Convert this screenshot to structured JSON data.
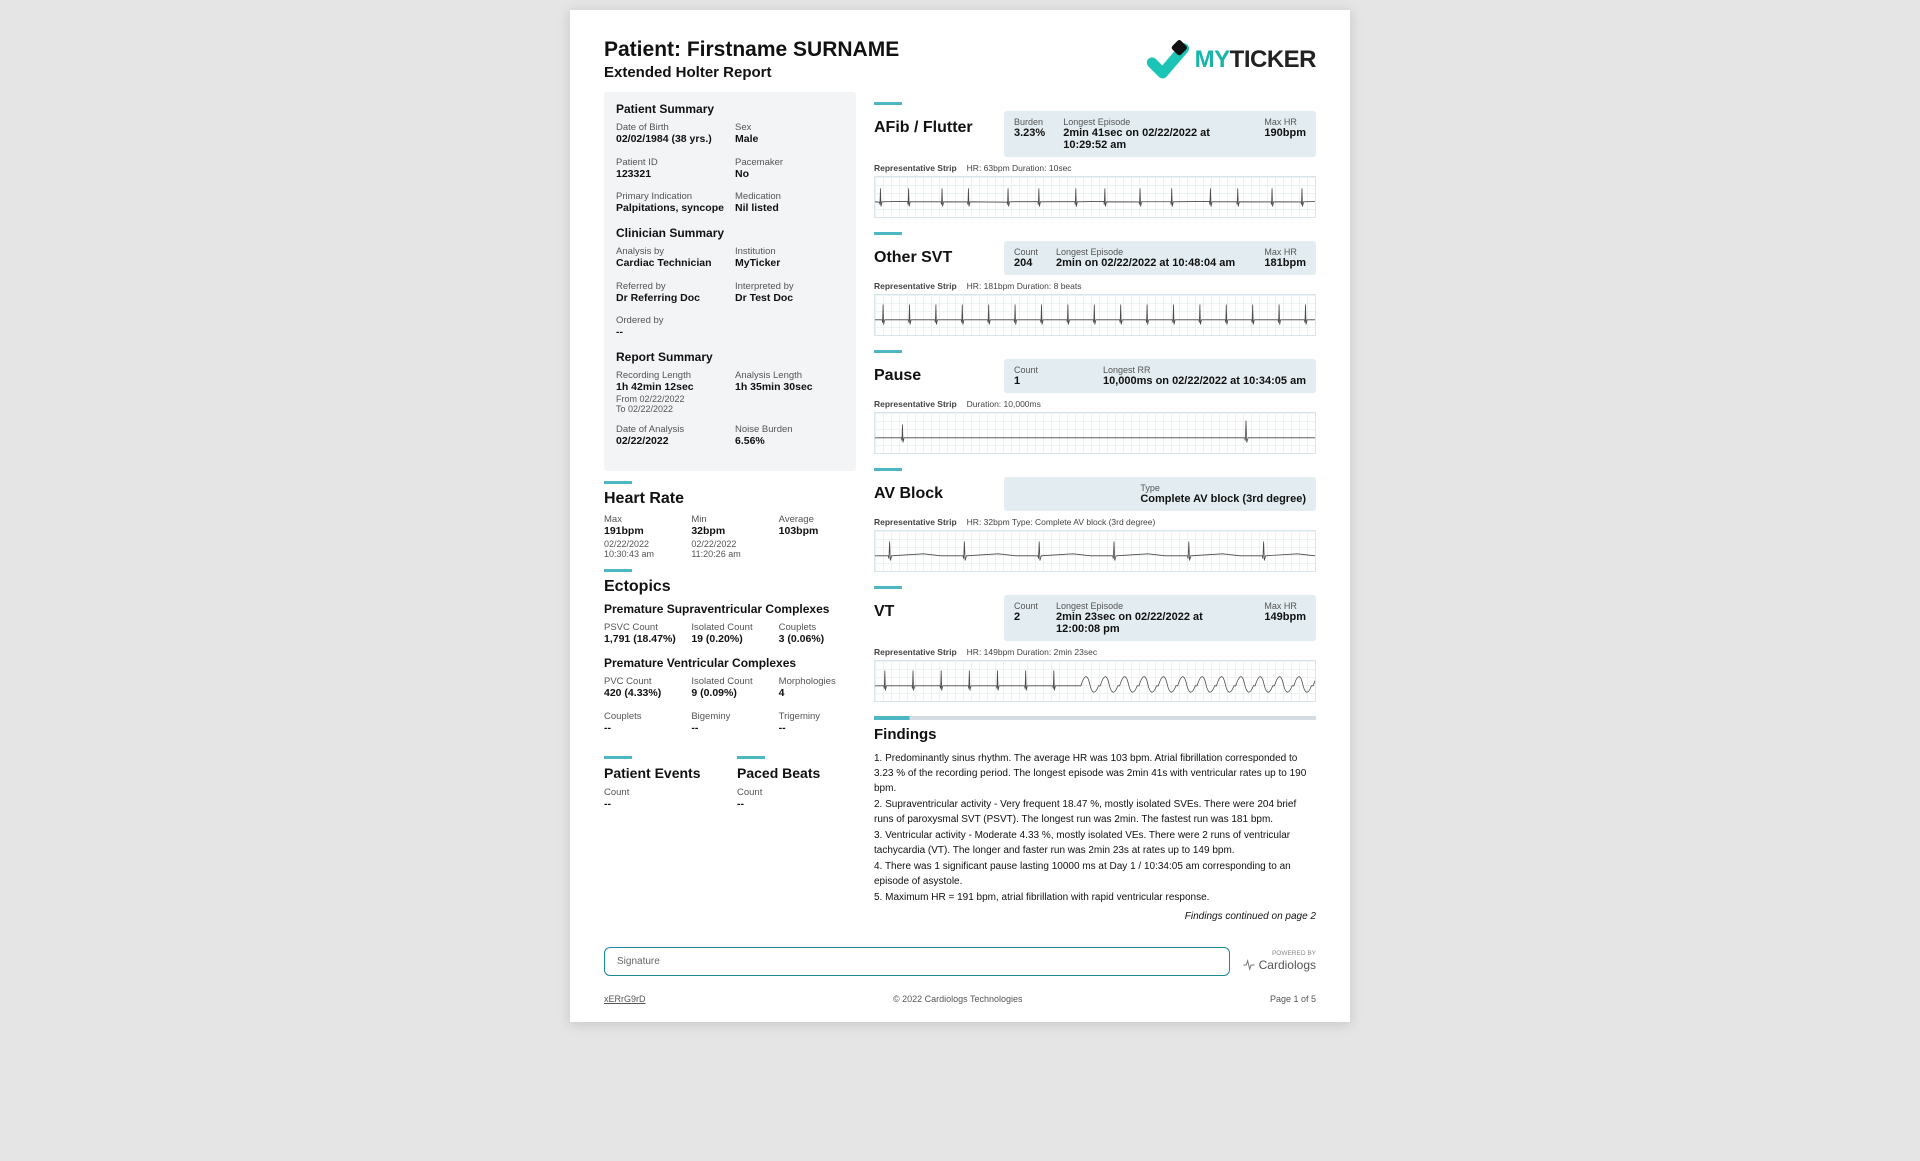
{
  "header": {
    "patient_name": "Patient: Firstname SURNAME",
    "report_type": "Extended Holter Report",
    "logo_my": "MY",
    "logo_ticker": "TICKER"
  },
  "patient_summary": {
    "title": "Patient Summary",
    "dob_label": "Date of Birth",
    "dob": "02/02/1984 (38 yrs.)",
    "sex_label": "Sex",
    "sex": "Male",
    "pid_label": "Patient ID",
    "pid": "123321",
    "pacemaker_label": "Pacemaker",
    "pacemaker": "No",
    "indication_label": "Primary Indication",
    "indication": "Palpitations, syncope",
    "medication_label": "Medication",
    "medication": "Nil listed"
  },
  "clinician_summary": {
    "title": "Clinician Summary",
    "analysis_by_label": "Analysis by",
    "analysis_by": "Cardiac Technician",
    "institution_label": "Institution",
    "institution": "MyTicker",
    "referred_label": "Referred by",
    "referred": "Dr Referring Doc",
    "interpreted_label": "Interpreted by",
    "interpreted": "Dr Test Doc",
    "ordered_label": "Ordered by",
    "ordered": "--"
  },
  "report_summary": {
    "title": "Report Summary",
    "rec_len_label": "Recording Length",
    "rec_len": "1h 42min 12sec",
    "analysis_len_label": "Analysis Length",
    "analysis_len": "1h 35min 30sec",
    "from": "From 02/22/2022",
    "to": "To 02/22/2022",
    "doa_label": "Date of Analysis",
    "doa": "02/22/2022",
    "noise_label": "Noise Burden",
    "noise": "6.56%"
  },
  "heart_rate": {
    "title": "Heart Rate",
    "max_label": "Max",
    "max": "191bpm",
    "max_date": "02/22/2022",
    "max_time": "10:30:43 am",
    "min_label": "Min",
    "min": "32bpm",
    "min_date": "02/22/2022",
    "min_time": "11:20:26 am",
    "avg_label": "Average",
    "avg": "103bpm"
  },
  "ectopics": {
    "title": "Ectopics",
    "psvc_title": "Premature Supraventricular Complexes",
    "psvc_count_label": "PSVC Count",
    "psvc_count": "1,791 (18.47%)",
    "psvc_iso_label": "Isolated Count",
    "psvc_iso": "19 (0.20%)",
    "psvc_coup_label": "Couplets",
    "psvc_coup": "3 (0.06%)",
    "pvc_title": "Premature Ventricular Complexes",
    "pvc_count_label": "PVC Count",
    "pvc_count": "420 (4.33%)",
    "pvc_iso_label": "Isolated Count",
    "pvc_iso": "9 (0.09%)",
    "pvc_morph_label": "Morphologies",
    "pvc_morph": "4",
    "pvc_coup_label": "Couplets",
    "pvc_coup": "--",
    "pvc_bi_label": "Bigeminy",
    "pvc_bi": "--",
    "pvc_tri_label": "Trigeminy",
    "pvc_tri": "--"
  },
  "patient_events": {
    "title": "Patient Events",
    "count_label": "Count",
    "count": "--"
  },
  "paced_beats": {
    "title": "Paced Beats",
    "count_label": "Count",
    "count": "--"
  },
  "events": {
    "afib": {
      "name": "AFib / Flutter",
      "s1_label": "Burden",
      "s1": "3.23%",
      "s2_label": "Longest Episode",
      "s2": "2min 41sec on 02/22/2022 at 10:29:52 am",
      "s3_label": "Max HR",
      "s3": "190bpm",
      "strip_label": "Representative Strip",
      "strip_meta": "HR: 63bpm    Duration: 10sec",
      "wave": "irregular"
    },
    "svt": {
      "name": "Other SVT",
      "s1_label": "Count",
      "s1": "204",
      "s2_label": "Longest Episode",
      "s2": "2min on 02/22/2022 at 10:48:04 am",
      "s3_label": "Max HR",
      "s3": "181bpm",
      "strip_label": "Representative Strip",
      "strip_meta": "HR: 181bpm    Duration: 8 beats",
      "wave": "fast-narrow"
    },
    "pause": {
      "name": "Pause",
      "s1_label": "Count",
      "s1": "1",
      "s2_label": "Longest RR",
      "s2": "10,000ms on 02/22/2022 at 10:34:05 am",
      "strip_label": "Representative Strip",
      "strip_meta": "Duration: 10,000ms",
      "wave": "pause"
    },
    "avblock": {
      "name": "AV Block",
      "s1_label": "Type",
      "s1": "Complete AV block (3rd degree)",
      "strip_label": "Representative Strip",
      "strip_meta": "HR: 32bpm    Type: Complete AV block (3rd degree)",
      "wave": "slow"
    },
    "vt": {
      "name": "VT",
      "s1_label": "Count",
      "s1": "2",
      "s2_label": "Longest Episode",
      "s2": "2min 23sec on 02/22/2022 at 12:00:08 pm",
      "s3_label": "Max HR",
      "s3": "149bpm",
      "strip_label": "Representative Strip",
      "strip_meta": "HR: 149bpm    Duration: 2min 23sec",
      "wave": "vt"
    }
  },
  "findings": {
    "title": "Findings",
    "f1": "1. Predominantly sinus rhythm. The average HR was 103 bpm. Atrial fibrillation corresponded to 3.23 % of the recording period. The longest episode was 2min 41s with ventricular rates up to 190 bpm.",
    "f2": "2. Supraventricular activity - Very frequent 18.47 %, mostly isolated SVEs. There were 204 brief runs of paroxysmal SVT (PSVT). The longest run was 2min. The fastest run was 181 bpm.",
    "f3": "3. Ventricular activity - Moderate 4.33 %, mostly isolated VEs. There were 2 runs of ventricular tachycardia (VT). The longer and faster run was 2min 23s at rates up to 149 bpm.",
    "f4": "4. There was 1 significant pause lasting 10000 ms at Day 1 / 10:34:05 am corresponding to an episode of asystole.",
    "f5": "5. Maximum HR = 191 bpm, atrial fibrillation with rapid ventricular response.",
    "cont": "Findings continued on page 2"
  },
  "signature": {
    "placeholder": "Signature"
  },
  "footer": {
    "code": "xERrG9rD",
    "copyright": "© 2022 Cardiologs Technologies",
    "page": "Page 1 of 5",
    "powered": "POWERED BY",
    "cardiologs": "Cardiologs"
  },
  "colors": {
    "accent": "#4db8c4",
    "stat_bg": "#e3edf1",
    "summary_bg": "#f3f4f6",
    "ecg_stroke": "#4a4a4a"
  }
}
